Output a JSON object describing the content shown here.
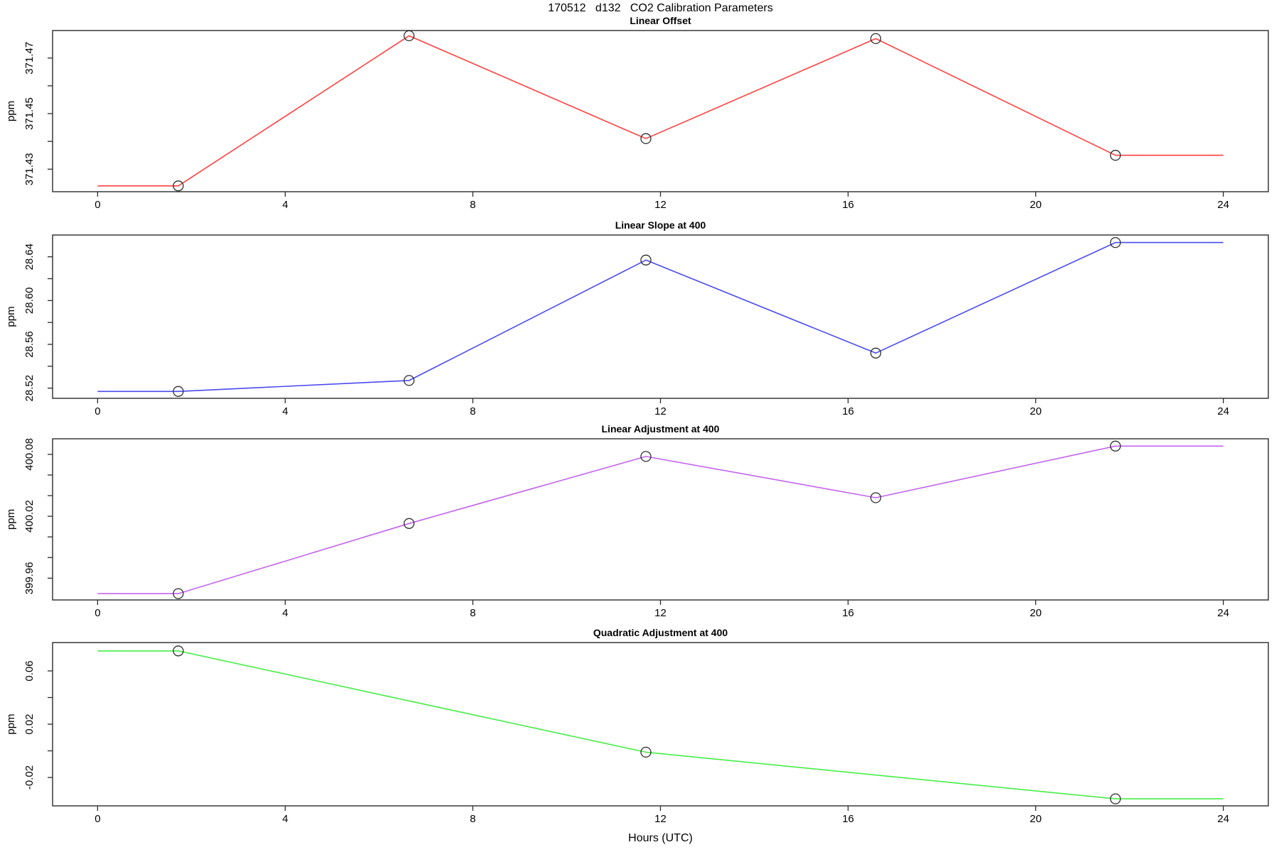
{
  "main_title": "170512   d132   CO2 Calibration Parameters",
  "x_axis": {
    "label": "Hours (UTC)",
    "lim": [
      -0.96,
      24.96
    ],
    "ticks": [
      0,
      4,
      8,
      12,
      16,
      20,
      24
    ],
    "tick_labels": [
      "0",
      "4",
      "8",
      "12",
      "16",
      "20",
      "24"
    ]
  },
  "chart_data": [
    {
      "type": "line",
      "title": "Linear Offset",
      "ylabel": "ppm",
      "line_color": "#ff4040",
      "marker_color": "#2e2e2e",
      "x": [
        0,
        1.72,
        6.64,
        11.69,
        16.59,
        21.7,
        24
      ],
      "y": [
        371.424,
        371.424,
        371.478,
        371.441,
        371.477,
        371.435,
        371.435
      ],
      "markers": {
        "x": [
          1.72,
          6.64,
          11.69,
          16.59,
          21.7
        ],
        "y": [
          371.424,
          371.478,
          371.441,
          371.477,
          371.435
        ]
      },
      "ylim": [
        371.4219,
        371.4799
      ],
      "yticks": [
        371.43,
        371.44,
        371.45,
        371.46,
        371.47
      ],
      "ytick_labels": [
        "371.43",
        "",
        "371.45",
        "",
        "371.47"
      ]
    },
    {
      "type": "line",
      "title": "Linear Slope at 400",
      "ylabel": "ppm",
      "line_color": "#4a4af0",
      "marker_color": "#2e2e2e",
      "x": [
        0,
        1.72,
        6.64,
        11.69,
        16.59,
        21.7,
        24
      ],
      "y": [
        28.517,
        28.517,
        28.527,
        28.637,
        28.552,
        28.653,
        28.653
      ],
      "markers": {
        "x": [
          1.72,
          6.64,
          11.69,
          16.59,
          21.7
        ],
        "y": [
          28.517,
          28.527,
          28.637,
          28.552,
          28.653
        ]
      },
      "ylim": [
        28.5107,
        28.6599
      ],
      "yticks": [
        28.52,
        28.54,
        28.56,
        28.58,
        28.6,
        28.62,
        28.64
      ],
      "ytick_labels": [
        "28.52",
        "",
        "28.56",
        "",
        "28.60",
        "",
        "28.64"
      ]
    },
    {
      "type": "line",
      "title": "Linear Adjustment at 400",
      "ylabel": "ppm",
      "line_color": "#c363f0",
      "marker_color": "#2e2e2e",
      "x": [
        0,
        1.72,
        6.64,
        11.69,
        16.59,
        21.7,
        24
      ],
      "y": [
        399.945,
        399.945,
        400.013,
        400.078,
        400.038,
        400.088,
        400.088
      ],
      "markers": {
        "x": [
          1.72,
          6.64,
          11.69,
          16.59,
          21.7
        ],
        "y": [
          399.945,
          400.013,
          400.078,
          400.038,
          400.088
        ]
      },
      "ylim": [
        399.9389,
        400.0951
      ],
      "yticks": [
        399.96,
        399.98,
        400.0,
        400.02,
        400.04,
        400.06,
        400.08
      ],
      "ytick_labels": [
        "399.96",
        "",
        "",
        "400.02",
        "",
        "",
        "400.08"
      ]
    },
    {
      "type": "line",
      "title": "Quadratic Adjustment at 400",
      "ylabel": "ppm",
      "line_color": "#45ee45",
      "marker_color": "#2e2e2e",
      "x": [
        0,
        1.72,
        11.69,
        21.7,
        24
      ],
      "y": [
        0.075,
        0.075,
        -0.001,
        -0.036,
        -0.036
      ],
      "markers": {
        "x": [
          1.72,
          11.69,
          21.7
        ],
        "y": [
          0.075,
          -0.001,
          -0.036
        ]
      },
      "ylim": [
        -0.0413,
        0.0813
      ],
      "yticks": [
        -0.02,
        0.0,
        0.02,
        0.04,
        0.06
      ],
      "ytick_labels": [
        "-0.02",
        "",
        "0.02",
        "",
        "0.06"
      ]
    }
  ]
}
